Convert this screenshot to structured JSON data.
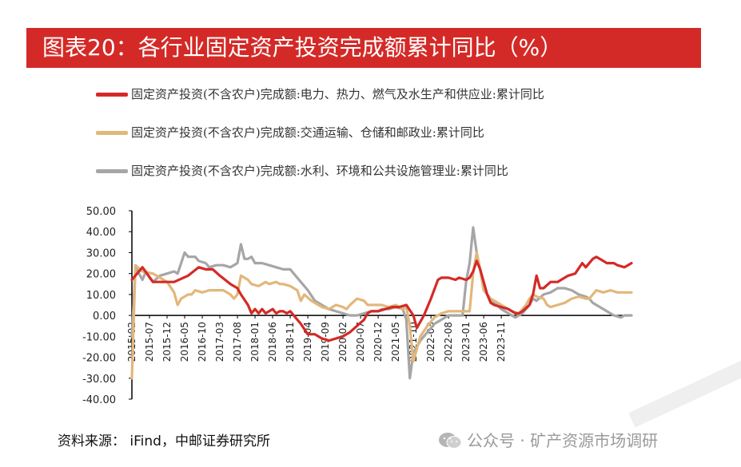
{
  "header": {
    "title": "图表20：各行业固定资产投资完成额累计同比（%）"
  },
  "footer": {
    "source": "资料来源： iFind，中邮证券研究所",
    "watermark": "公众号 · 矿产资源市场调研"
  },
  "chart_data": {
    "type": "line",
    "ylim": [
      -40,
      50
    ],
    "yticks": [
      "50.00",
      "40.00",
      "30.00",
      "20.00",
      "10.00",
      "0.00",
      "-10.00",
      "-20.00",
      "-30.00",
      "-40.00"
    ],
    "xticks": [
      "2015-02",
      "2015-07",
      "2015-12",
      "2016-05",
      "2016-10",
      "2017-03",
      "2017-08",
      "2018-01",
      "2018-06",
      "2018-11",
      "2019-04",
      "2019-09",
      "2020-02",
      "2020-07",
      "2020-12",
      "2021-05",
      "2021-10",
      "2022-03",
      "2022-08",
      "2023-01",
      "2023-06",
      "2023-11"
    ],
    "legend_position": "top",
    "grid": false,
    "series": [
      {
        "name": "固定资产投资(不含农户)完成额:电力、热力、燃气及水生产和供应业:累计同比",
        "color": "#d42a27",
        "values": [
          [
            0,
            17
          ],
          [
            3,
            23
          ],
          [
            6,
            16
          ],
          [
            12,
            16
          ],
          [
            16,
            19
          ],
          [
            19,
            23
          ],
          [
            21,
            22
          ],
          [
            23,
            22
          ],
          [
            25,
            19
          ],
          [
            28,
            15
          ],
          [
            30,
            13
          ],
          [
            31,
            10
          ],
          [
            33,
            5
          ],
          [
            34,
            1
          ],
          [
            35,
            3
          ],
          [
            36,
            1
          ],
          [
            37,
            3
          ],
          [
            38,
            1
          ],
          [
            39,
            2
          ],
          [
            40,
            3
          ],
          [
            41,
            1
          ],
          [
            42,
            2
          ],
          [
            43,
            2
          ],
          [
            44,
            1
          ],
          [
            45,
            2
          ],
          [
            46,
            0
          ],
          [
            48,
            -4
          ],
          [
            50,
            -9
          ],
          [
            52,
            -9
          ],
          [
            54,
            -11
          ],
          [
            56,
            -12
          ],
          [
            58,
            -11
          ],
          [
            60,
            -10
          ],
          [
            62,
            -8
          ],
          [
            64,
            -5
          ],
          [
            66,
            -2
          ],
          [
            67,
            1
          ],
          [
            68,
            2
          ],
          [
            70,
            2
          ],
          [
            72,
            3
          ],
          [
            74,
            4
          ],
          [
            76,
            4
          ],
          [
            78,
            5
          ],
          [
            80,
            0
          ],
          [
            81,
            -6
          ],
          [
            83,
            0
          ],
          [
            85,
            8
          ],
          [
            87,
            17
          ],
          [
            88,
            18
          ],
          [
            90,
            18
          ],
          [
            92,
            17
          ],
          [
            93,
            18
          ],
          [
            95,
            17
          ],
          [
            96,
            18
          ],
          [
            97,
            21
          ],
          [
            98,
            26
          ],
          [
            99,
            22
          ],
          [
            100,
            16
          ],
          [
            101,
            10
          ],
          [
            102,
            6
          ],
          [
            103,
            5
          ],
          [
            105,
            4
          ],
          [
            107,
            3
          ],
          [
            109,
            1
          ],
          [
            110,
            1
          ],
          [
            111,
            2
          ],
          [
            113,
            5
          ],
          [
            114,
            10
          ],
          [
            115,
            19
          ],
          [
            116,
            13
          ],
          [
            117,
            13
          ],
          [
            119,
            16
          ],
          [
            121,
            16
          ],
          [
            122,
            17
          ],
          [
            124,
            19
          ],
          [
            126,
            20
          ],
          [
            128,
            25
          ],
          [
            129,
            23
          ],
          [
            131,
            27
          ],
          [
            132,
            28
          ],
          [
            134,
            26
          ],
          [
            135,
            25
          ],
          [
            137,
            25
          ],
          [
            138,
            24
          ],
          [
            140,
            23
          ],
          [
            141,
            24
          ],
          [
            142,
            25
          ]
        ]
      },
      {
        "name": "固定资产投资(不含农户)完成额:交通运输、仓储和邮政业:累计同比",
        "color": "#e2b77b",
        "values": [
          [
            0,
            -30
          ],
          [
            1,
            24
          ],
          [
            3,
            21
          ],
          [
            6,
            20
          ],
          [
            8,
            18
          ],
          [
            10,
            16
          ],
          [
            12,
            11
          ],
          [
            13,
            5
          ],
          [
            14,
            8
          ],
          [
            16,
            10
          ],
          [
            17,
            10
          ],
          [
            18,
            12
          ],
          [
            20,
            11
          ],
          [
            22,
            12
          ],
          [
            24,
            12
          ],
          [
            26,
            12
          ],
          [
            27,
            11
          ],
          [
            28,
            10
          ],
          [
            29,
            8
          ],
          [
            30,
            10
          ],
          [
            31,
            19
          ],
          [
            33,
            17
          ],
          [
            34,
            15
          ],
          [
            36,
            14
          ],
          [
            38,
            16
          ],
          [
            39,
            15
          ],
          [
            41,
            16
          ],
          [
            42,
            15
          ],
          [
            43,
            15
          ],
          [
            45,
            14
          ],
          [
            47,
            12
          ],
          [
            48,
            7
          ],
          [
            49,
            10
          ],
          [
            51,
            7
          ],
          [
            52,
            6
          ],
          [
            54,
            4
          ],
          [
            56,
            3
          ],
          [
            58,
            5
          ],
          [
            60,
            4
          ],
          [
            61,
            3
          ],
          [
            62,
            5
          ],
          [
            64,
            8
          ],
          [
            66,
            7
          ],
          [
            67,
            5
          ],
          [
            69,
            5
          ],
          [
            71,
            5
          ],
          [
            73,
            4
          ],
          [
            75,
            5
          ],
          [
            77,
            3
          ],
          [
            78,
            4
          ],
          [
            79,
            -5
          ],
          [
            80,
            -22
          ],
          [
            82,
            -10
          ],
          [
            84,
            -5
          ],
          [
            86,
            -1
          ],
          [
            88,
            1
          ],
          [
            90,
            2
          ],
          [
            92,
            2
          ],
          [
            94,
            2
          ],
          [
            96,
            2
          ],
          [
            97,
            20
          ],
          [
            98,
            30
          ],
          [
            99,
            22
          ],
          [
            100,
            12
          ],
          [
            101,
            10
          ],
          [
            102,
            8
          ],
          [
            104,
            6
          ],
          [
            106,
            4
          ],
          [
            108,
            2
          ],
          [
            110,
            1
          ],
          [
            112,
            5
          ],
          [
            113,
            8
          ],
          [
            114,
            10
          ],
          [
            115,
            9
          ],
          [
            117,
            8
          ],
          [
            118,
            5
          ],
          [
            119,
            4
          ],
          [
            121,
            5
          ],
          [
            123,
            6
          ],
          [
            125,
            8
          ],
          [
            127,
            9
          ],
          [
            129,
            8
          ],
          [
            130,
            8
          ],
          [
            131,
            10
          ],
          [
            132,
            12
          ],
          [
            134,
            11
          ],
          [
            136,
            12
          ],
          [
            138,
            11
          ],
          [
            140,
            11
          ],
          [
            142,
            11
          ]
        ]
      },
      {
        "name": "固定资产投资(不含农户)完成额:水利、环境和公共设施管理业:累计同比",
        "color": "#a6a6a6",
        "values": [
          [
            0,
            -10
          ],
          [
            1,
            23
          ],
          [
            3,
            17
          ],
          [
            4,
            21
          ],
          [
            5,
            18
          ],
          [
            6,
            16
          ],
          [
            8,
            19
          ],
          [
            10,
            20
          ],
          [
            12,
            21
          ],
          [
            13,
            20
          ],
          [
            14,
            25
          ],
          [
            15,
            30
          ],
          [
            16,
            28
          ],
          [
            17,
            28
          ],
          [
            18,
            28
          ],
          [
            19,
            26
          ],
          [
            21,
            25
          ],
          [
            22,
            23
          ],
          [
            24,
            24
          ],
          [
            26,
            24
          ],
          [
            28,
            23
          ],
          [
            29,
            24
          ],
          [
            30,
            25
          ],
          [
            31,
            34
          ],
          [
            32,
            27
          ],
          [
            33,
            27
          ],
          [
            34,
            28
          ],
          [
            35,
            25
          ],
          [
            37,
            25
          ],
          [
            39,
            24
          ],
          [
            41,
            23
          ],
          [
            43,
            22
          ],
          [
            45,
            22
          ],
          [
            46,
            20
          ],
          [
            48,
            16
          ],
          [
            50,
            12
          ],
          [
            52,
            7
          ],
          [
            54,
            5
          ],
          [
            56,
            3
          ],
          [
            58,
            2
          ],
          [
            60,
            1
          ],
          [
            62,
            0
          ],
          [
            64,
            0
          ],
          [
            66,
            1
          ],
          [
            68,
            2
          ],
          [
            70,
            2
          ],
          [
            71,
            3
          ],
          [
            73,
            3
          ],
          [
            75,
            4
          ],
          [
            77,
            3
          ],
          [
            78,
            -2
          ],
          [
            79,
            -30
          ],
          [
            80,
            -18
          ],
          [
            82,
            -12
          ],
          [
            84,
            -8
          ],
          [
            86,
            -4
          ],
          [
            88,
            -2
          ],
          [
            90,
            0
          ],
          [
            92,
            0
          ],
          [
            94,
            0
          ],
          [
            95,
            16
          ],
          [
            96,
            25
          ],
          [
            97,
            42
          ],
          [
            98,
            30
          ],
          [
            99,
            22
          ],
          [
            100,
            12
          ],
          [
            101,
            10
          ],
          [
            103,
            6
          ],
          [
            105,
            3
          ],
          [
            107,
            1
          ],
          [
            109,
            -1
          ],
          [
            111,
            1
          ],
          [
            113,
            5
          ],
          [
            114,
            8
          ],
          [
            115,
            7
          ],
          [
            117,
            10
          ],
          [
            119,
            11
          ],
          [
            121,
            13
          ],
          [
            123,
            13
          ],
          [
            125,
            12
          ],
          [
            127,
            10
          ],
          [
            129,
            9
          ],
          [
            130,
            8
          ],
          [
            131,
            6
          ],
          [
            133,
            4
          ],
          [
            135,
            2
          ],
          [
            137,
            0
          ],
          [
            139,
            -1
          ],
          [
            140,
            0
          ],
          [
            142,
            0
          ]
        ]
      }
    ]
  }
}
